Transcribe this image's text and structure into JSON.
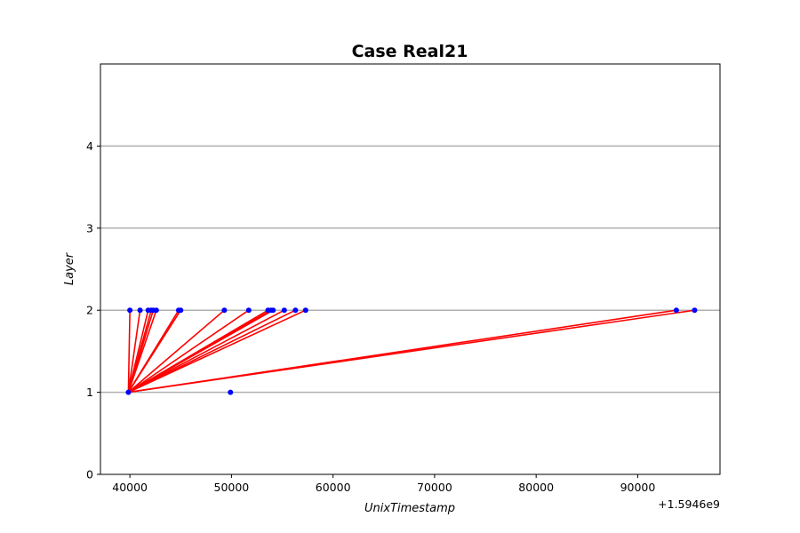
{
  "chart_data": {
    "type": "scatter",
    "title": "Case Real21",
    "xlabel": "UnixTimestamp",
    "ylabel": "Layer",
    "x_offset_label": "+1.5946e9",
    "xlim": [
      37100,
      98100
    ],
    "ylim": [
      0,
      5
    ],
    "x_ticks": [
      40000,
      50000,
      60000,
      70000,
      80000,
      90000
    ],
    "y_ticks": [
      0,
      1,
      2,
      3,
      4
    ],
    "grid": "horizontal",
    "series": [
      {
        "marker_color": "#0000ff",
        "points": [
          [
            39850,
            1
          ],
          [
            49900,
            1
          ],
          [
            40000,
            2
          ],
          [
            41000,
            2
          ],
          [
            41800,
            2
          ],
          [
            42100,
            2
          ],
          [
            42300,
            2
          ],
          [
            42600,
            2
          ],
          [
            44800,
            2
          ],
          [
            45000,
            2
          ],
          [
            49300,
            2
          ],
          [
            51700,
            2
          ],
          [
            53600,
            2
          ],
          [
            53900,
            2
          ],
          [
            54100,
            2
          ],
          [
            55200,
            2
          ],
          [
            56300,
            2
          ],
          [
            57300,
            2
          ],
          [
            93800,
            2
          ],
          [
            95600,
            2
          ]
        ]
      }
    ],
    "edges": {
      "color": "#ff0000",
      "source": [
        39850,
        1
      ],
      "targets": [
        [
          40000,
          2
        ],
        [
          41000,
          2
        ],
        [
          41800,
          2
        ],
        [
          42100,
          2
        ],
        [
          42300,
          2
        ],
        [
          42600,
          2
        ],
        [
          44800,
          2
        ],
        [
          45000,
          2
        ],
        [
          49300,
          2
        ],
        [
          51700,
          2
        ],
        [
          53600,
          2
        ],
        [
          53900,
          2
        ],
        [
          54100,
          2
        ],
        [
          55200,
          2
        ],
        [
          56300,
          2
        ],
        [
          57300,
          2
        ],
        [
          93800,
          2
        ],
        [
          95600,
          2
        ]
      ]
    }
  }
}
